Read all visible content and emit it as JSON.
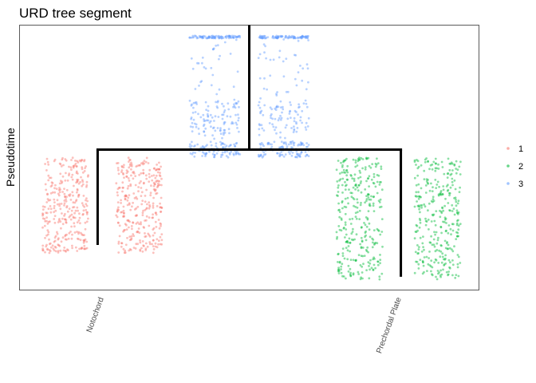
{
  "chart_data": {
    "type": "scatter",
    "title": "URD tree segment",
    "xlabel": "",
    "ylabel": "Pseudotime",
    "x_tick_labels": [
      "Notochord",
      "Prechordal Plate"
    ],
    "grid": false,
    "legend_position": "right",
    "legend": [
      {
        "label": "1",
        "color": "#F8766D"
      },
      {
        "label": "2",
        "color": "#00BA38"
      },
      {
        "label": "3",
        "color": "#619CFF"
      }
    ],
    "tree": {
      "root_segment": "3",
      "root_x": 0.5,
      "root_pseudotime_range": [
        0.0,
        0.47
      ],
      "branch_pseudotime": 0.47,
      "children": [
        {
          "segment": "1",
          "tip": "Notochord",
          "x": 0.17,
          "pseudotime_range": [
            0.47,
            0.83
          ]
        },
        {
          "segment": "2",
          "tip": "Prechordal Plate",
          "x": 0.83,
          "pseudotime_range": [
            0.47,
            0.95
          ]
        }
      ]
    },
    "series": [
      {
        "name": "3",
        "color": "#619CFF",
        "x_bands": [
          [
            0.37,
            0.48
          ],
          [
            0.52,
            0.63
          ]
        ],
        "pseudotime_range": [
          0.04,
          0.5
        ],
        "dense_bands": [
          [
            0.04,
            0.05
          ],
          [
            0.29,
            0.41
          ],
          [
            0.44,
            0.5
          ]
        ]
      },
      {
        "name": "1",
        "color": "#F8766D",
        "x_bands": [
          [
            0.05,
            0.15
          ],
          [
            0.21,
            0.31
          ]
        ],
        "pseudotime_range": [
          0.5,
          0.86
        ]
      },
      {
        "name": "2",
        "color": "#00BA38",
        "x_bands": [
          [
            0.69,
            0.79
          ],
          [
            0.86,
            0.96
          ]
        ],
        "pseudotime_range": [
          0.5,
          0.96
        ]
      }
    ]
  }
}
